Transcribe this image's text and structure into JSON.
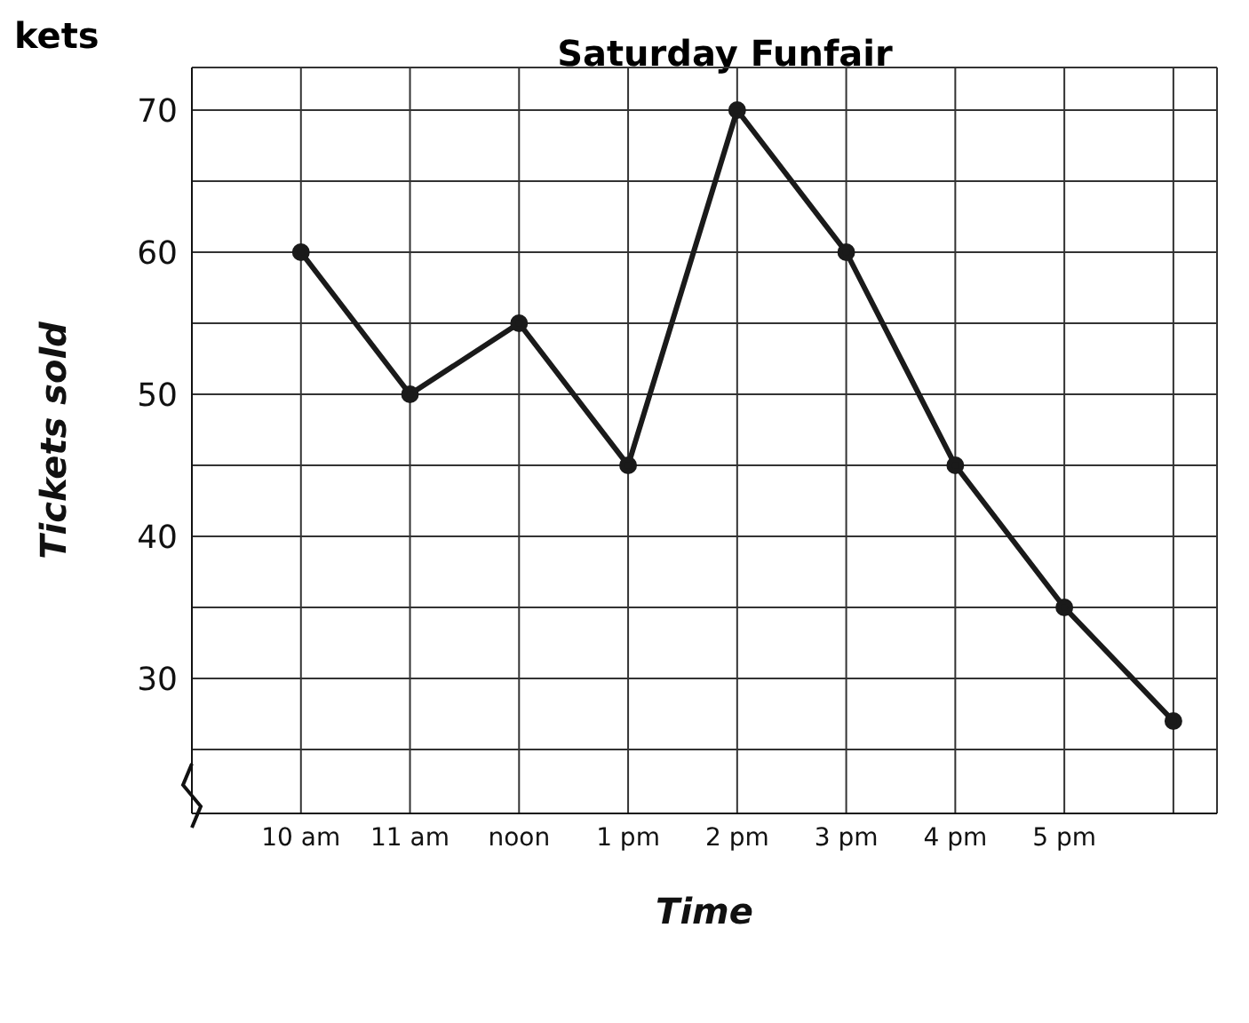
{
  "chart_data": {
    "type": "line",
    "title": "Saturday Funfair",
    "xlabel": "Time",
    "ylabel": "Tickets sold",
    "annotations": [
      "kets"
    ],
    "categories": [
      "10 am",
      "11 am",
      "noon",
      "1 pm",
      "2 pm",
      "3 pm",
      "4 pm",
      "5 pm",
      null
    ],
    "series": [
      {
        "color": "#1a1a1a",
        "values": [
          60,
          50,
          55,
          45,
          70,
          60,
          45,
          35,
          27
        ]
      }
    ],
    "ylim": [
      20.5,
      73
    ],
    "yticks": [
      {
        "value": 25,
        "label": null
      },
      30,
      {
        "value": 35,
        "label": null
      },
      40,
      {
        "value": 45,
        "label": null
      },
      50,
      {
        "value": 55,
        "label": null
      },
      60,
      {
        "value": 65,
        "label": null
      },
      70
    ],
    "grid": true,
    "marker": "circle",
    "line_style": "solid"
  }
}
